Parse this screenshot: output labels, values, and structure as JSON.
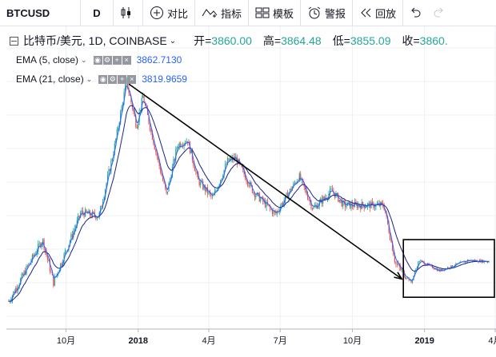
{
  "toolbar": {
    "symbol": "BTCUSD",
    "resolution": "D",
    "compare_label": "对比",
    "indicators_label": "指标",
    "templates_label": "模板",
    "alerts_label": "警报",
    "replay_label": "回放"
  },
  "legend": {
    "title": "比特币/美元, 1D, COINBASE",
    "open_label": "开=",
    "open_value": "3860.00",
    "high_label": "高=",
    "high_value": "3864.48",
    "low_label": "低=",
    "low_value": "3855.09",
    "close_label": "收=",
    "close_value": "3860.",
    "ema5_label": "EMA (5, close)",
    "ema5_value": "3862.7130",
    "ema21_label": "EMA (21, close)",
    "ema21_value": "3819.9659"
  },
  "time_axis": {
    "labels": [
      "10月",
      "2018",
      "4月",
      "7月",
      "10月",
      "2019",
      "4月"
    ]
  },
  "colors": {
    "up": "#26a69a",
    "down": "#ef5350",
    "ema5": "#2962ff",
    "ema21": "#1a237e",
    "grid": "#eef0f4",
    "annotation": "#000000"
  },
  "chart_data": {
    "type": "candlestick",
    "title": "比特币/美元, 1D, COINBASE",
    "x_ticks": [
      "10月",
      "2018",
      "4月",
      "7月",
      "10月",
      "2019",
      "4月"
    ],
    "keypoints": [
      {
        "date": "2017-07-20",
        "price": 2700
      },
      {
        "date": "2017-09-01",
        "price": 4700
      },
      {
        "date": "2017-09-15",
        "price": 3200
      },
      {
        "date": "2017-10-20",
        "price": 6000
      },
      {
        "date": "2017-11-12",
        "price": 5800
      },
      {
        "date": "2017-12-01",
        "price": 10500
      },
      {
        "date": "2017-12-17",
        "price": 19500
      },
      {
        "date": "2017-12-30",
        "price": 13000
      },
      {
        "date": "2018-01-07",
        "price": 17000
      },
      {
        "date": "2018-01-20",
        "price": 11500
      },
      {
        "date": "2018-02-06",
        "price": 7000
      },
      {
        "date": "2018-02-20",
        "price": 11000
      },
      {
        "date": "2018-03-05",
        "price": 11500
      },
      {
        "date": "2018-03-18",
        "price": 8000
      },
      {
        "date": "2018-04-06",
        "price": 6800
      },
      {
        "date": "2018-04-25",
        "price": 9500
      },
      {
        "date": "2018-05-05",
        "price": 9800
      },
      {
        "date": "2018-05-28",
        "price": 7200
      },
      {
        "date": "2018-06-25",
        "price": 5900
      },
      {
        "date": "2018-07-25",
        "price": 8300
      },
      {
        "date": "2018-08-12",
        "price": 6200
      },
      {
        "date": "2018-09-05",
        "price": 7300
      },
      {
        "date": "2018-09-20",
        "price": 6400
      },
      {
        "date": "2018-11-10",
        "price": 6400
      },
      {
        "date": "2018-11-25",
        "price": 3800
      },
      {
        "date": "2018-12-15",
        "price": 3200
      },
      {
        "date": "2018-12-25",
        "price": 3900
      },
      {
        "date": "2019-01-20",
        "price": 3550
      },
      {
        "date": "2019-02-25",
        "price": 3900
      },
      {
        "date": "2019-03-25",
        "price": 3860
      }
    ],
    "annotations": [
      {
        "type": "arrow",
        "from_date": "2017-12-20",
        "from_price": 19000,
        "to_date": "2018-12-03",
        "to_price": 3300
      },
      {
        "type": "rectangle",
        "from_date": "2018-12-05",
        "to_date": "2019-03-31",
        "price_low": 2800,
        "price_high": 4700
      }
    ]
  }
}
